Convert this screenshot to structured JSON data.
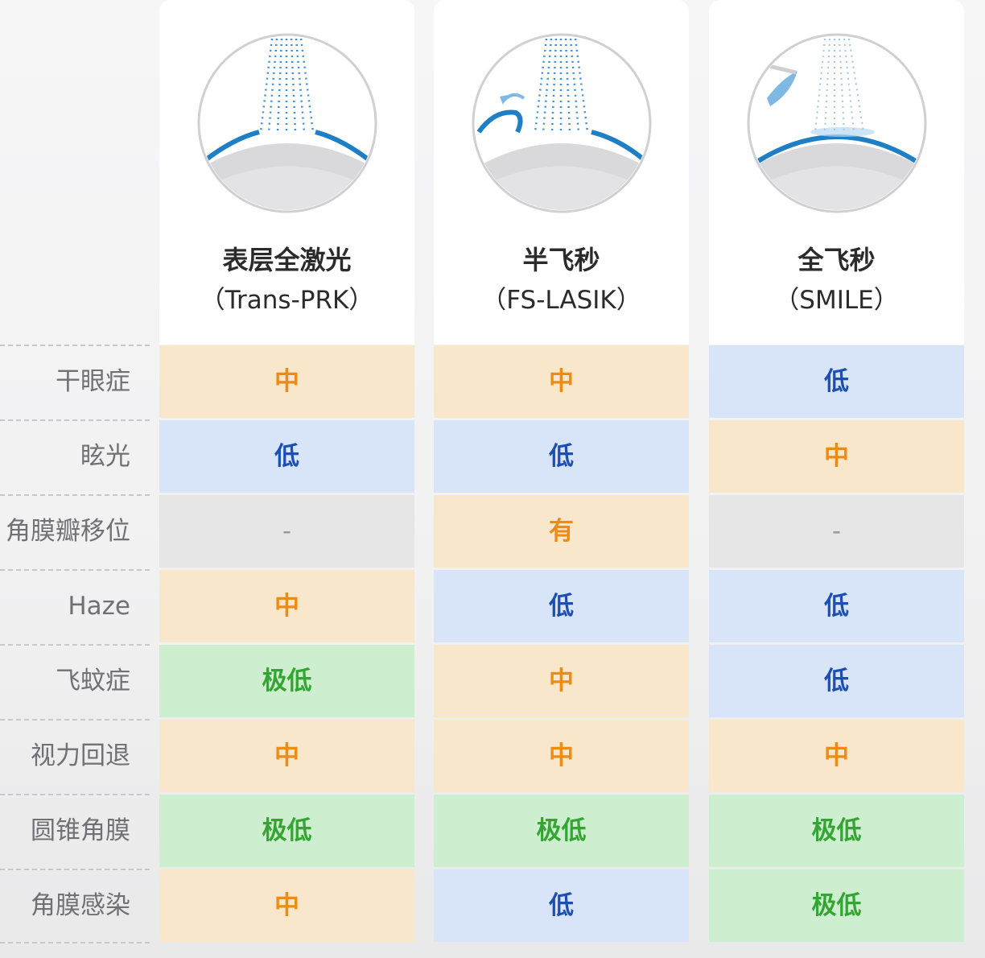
{
  "columns": [
    {
      "title": "表层全激光",
      "subtitle": "（Trans-PRK）"
    },
    {
      "title": "半飞秒",
      "subtitle": "（FS-LASIK）"
    },
    {
      "title": "全飞秒",
      "subtitle": "（SMILE）"
    }
  ],
  "rows": [
    {
      "label": "干眼症",
      "values": [
        "中",
        "中",
        "低"
      ]
    },
    {
      "label": "眩光",
      "values": [
        "低",
        "低",
        "中"
      ]
    },
    {
      "label": "角膜瓣移位",
      "values": [
        "-",
        "有",
        "-"
      ]
    },
    {
      "label": "Haze",
      "values": [
        "中",
        "低",
        "低"
      ]
    },
    {
      "label": "飞蚊症",
      "values": [
        "极低",
        "中",
        "低"
      ]
    },
    {
      "label": "视力回退",
      "values": [
        "中",
        "中",
        "中"
      ]
    },
    {
      "label": "圆锥角膜",
      "values": [
        "极低",
        "极低",
        "极低"
      ]
    },
    {
      "label": "角膜感染",
      "values": [
        "中",
        "低",
        "极低"
      ]
    }
  ],
  "levels": {
    "中": {
      "bg": "#f9e7cb",
      "fg": "#ee8b14"
    },
    "低": {
      "bg": "#d8e5f8",
      "fg": "#1d4fb3"
    },
    "极低": {
      "bg": "#cdeecf",
      "fg": "#34a432"
    },
    "有": {
      "bg": "#f9e7cb",
      "fg": "#ee8b14"
    },
    "-": {
      "bg": "#e6e6e6",
      "fg": "#9a9a9a"
    }
  },
  "illustrations": [
    "laser-ablation-icon",
    "flap-laser-icon",
    "lenticule-extraction-icon"
  ],
  "colors": {
    "accent_blue": "#1f7fc4",
    "cornea_gray": "#d4d4d6"
  }
}
